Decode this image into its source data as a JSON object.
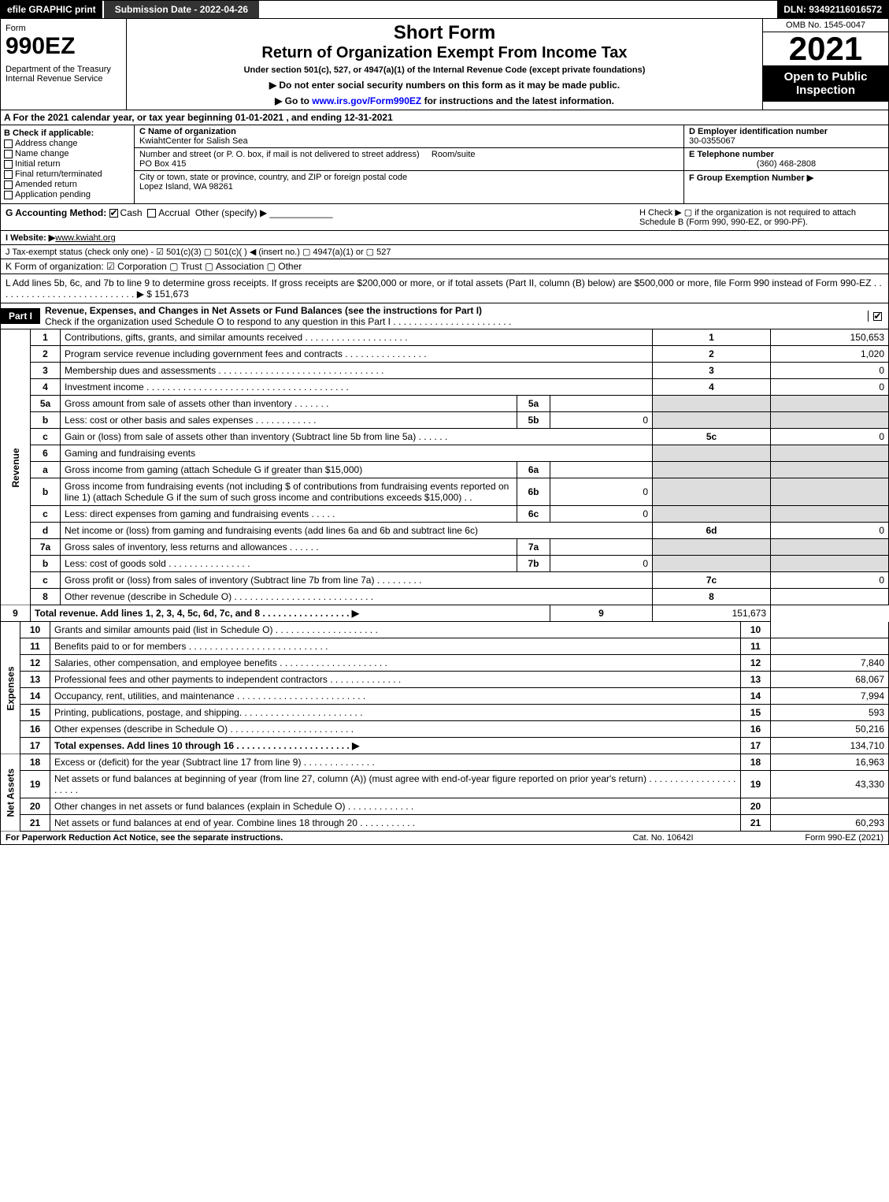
{
  "topbar": {
    "efile": "efile GRAPHIC print",
    "subdate": "Submission Date - 2022-04-26",
    "dln": "DLN: 93492116016572"
  },
  "hdr": {
    "form": "Form",
    "num": "990EZ",
    "dept": "Department of the Treasury\nInternal Revenue Service",
    "short": "Short Form",
    "title": "Return of Organization Exempt From Income Tax",
    "under": "Under section 501(c), 527, or 4947(a)(1) of the Internal Revenue Code (except private foundations)",
    "note1": "▶ Do not enter social security numbers on this form as it may be made public.",
    "note2": "▶ Go to ",
    "note2link": "www.irs.gov/Form990EZ",
    "note2b": " for instructions and the latest information.",
    "omb": "OMB No. 1545-0047",
    "year": "2021",
    "open": "Open to Public Inspection"
  },
  "A": "A  For the 2021 calendar year, or tax year beginning 01-01-2021 , and ending 12-31-2021",
  "B": {
    "title": "B  Check if applicable:",
    "addr": "Address change",
    "name": "Name change",
    "init": "Initial return",
    "final": "Final return/terminated",
    "amend": "Amended return",
    "app": "Application pending"
  },
  "C": {
    "nameLbl": "C Name of organization",
    "name": "KwiahtCenter for Salish Sea",
    "streetLbl": "Number and street (or P. O. box, if mail is not delivered to street address)",
    "room": "Room/suite",
    "street": "PO Box 415",
    "cityLbl": "City or town, state or province, country, and ZIP or foreign postal code",
    "city": "Lopez Island, WA   98261"
  },
  "D": {
    "einLbl": "D Employer identification number",
    "ein": "30-0355067",
    "telLbl": "E Telephone number",
    "tel": "(360) 468-2808",
    "grpLbl": "F Group Exemption Number   ▶"
  },
  "G": {
    "lbl": "G Accounting Method:",
    "cash": "Cash",
    "accr": "Accrual",
    "other": "Other (specify) ▶"
  },
  "H": "H   Check ▶  ▢  if the organization is not required to attach Schedule B (Form 990, 990-EZ, or 990-PF).",
  "I": {
    "lbl": "I Website: ▶",
    "val": "www.kwiaht.org"
  },
  "J": "J Tax-exempt status (check only one) - ☑ 501(c)(3) ▢ 501(c)(  ) ◀ (insert no.) ▢ 4947(a)(1) or ▢ 527",
  "K": "K Form of organization:   ☑ Corporation   ▢ Trust   ▢ Association   ▢ Other",
  "L": "L Add lines 5b, 6c, and 7b to line 9 to determine gross receipts. If gross receipts are $200,000 or more, or if total assets (Part II, column (B) below) are $500,000 or more, file Form 990 instead of Form 990-EZ  . . . . . . . . . . . . . . . . . . . . . . . . . . .  ▶ $ 151,673",
  "part1": {
    "tag": "Part I",
    "title": "Revenue, Expenses, and Changes in Net Assets or Fund Balances (see the instructions for Part I)",
    "sub": "Check if the organization used Schedule O to respond to any question in this Part I . . . . . . . . . . . . . . . . . . . . . . ."
  },
  "sideR": "Revenue",
  "sideE": "Expenses",
  "sideN": "Net Assets",
  "lines": [
    {
      "n": "1",
      "t": "Contributions, gifts, grants, and similar amounts received  . . . . . . . . . . . . . . . . . . . .",
      "r": "1",
      "v": "150,653"
    },
    {
      "n": "2",
      "t": "Program service revenue including government fees and contracts  . . . . . . . . . . . . . . . .",
      "r": "2",
      "v": "1,020"
    },
    {
      "n": "3",
      "t": "Membership dues and assessments  . . . . . . . . . . . . . . . . . . . . . . . . . . . . . . . .",
      "r": "3",
      "v": "0"
    },
    {
      "n": "4",
      "t": "Investment income  . . . . . . . . . . . . . . . . . . . . . . . . . . . . . . . . . . . . . . .",
      "r": "4",
      "v": "0"
    }
  ],
  "l5a": {
    "n": "5a",
    "t": "Gross amount from sale of assets other than inventory  . . . . . . .",
    "m": "5a",
    "mv": ""
  },
  "l5b": {
    "n": "b",
    "t": "Less: cost or other basis and sales expenses  . . . . . . . . . . . .",
    "m": "5b",
    "mv": "0"
  },
  "l5c": {
    "n": "c",
    "t": "Gain or (loss) from sale of assets other than inventory (Subtract line 5b from line 5a)  . . . . . .",
    "r": "5c",
    "v": "0"
  },
  "l6": {
    "n": "6",
    "t": "Gaming and fundraising events"
  },
  "l6a": {
    "n": "a",
    "t": "Gross income from gaming (attach Schedule G if greater than $15,000)",
    "m": "6a",
    "mv": ""
  },
  "l6b": {
    "n": "b",
    "t": "Gross income from fundraising events (not including $                    of contributions from fundraising events reported on line 1) (attach Schedule G if the sum of such gross income and contributions exceeds $15,000)   . .",
    "m": "6b",
    "mv": "0"
  },
  "l6c": {
    "n": "c",
    "t": "Less: direct expenses from gaming and fundraising events   . . . . .",
    "m": "6c",
    "mv": "0"
  },
  "l6d": {
    "n": "d",
    "t": "Net income or (loss) from gaming and fundraising events (add lines 6a and 6b and subtract line 6c)",
    "r": "6d",
    "v": "0"
  },
  "l7a": {
    "n": "7a",
    "t": "Gross sales of inventory, less returns and allowances  . . . . . .",
    "m": "7a",
    "mv": ""
  },
  "l7b": {
    "n": "b",
    "t": "Less: cost of goods sold       . . . . . . . . . . . . . . . .",
    "m": "7b",
    "mv": "0"
  },
  "l7c": {
    "n": "c",
    "t": "Gross profit or (loss) from sales of inventory (Subtract line 7b from line 7a)  . . . . . . . . .",
    "r": "7c",
    "v": "0"
  },
  "l8": {
    "n": "8",
    "t": "Other revenue (describe in Schedule O)  . . . . . . . . . . . . . . . . . . . . . . . . . . .",
    "r": "8",
    "v": ""
  },
  "l9": {
    "n": "9",
    "t": "Total revenue. Add lines 1, 2, 3, 4, 5c, 6d, 7c, and 8   . . . . . . . . . . . . . . . . .   ▶",
    "r": "9",
    "v": "151,673",
    "bold": true
  },
  "exp": [
    {
      "n": "10",
      "t": "Grants and similar amounts paid (list in Schedule O)  . . . . . . . . . . . . . . . . . . . .",
      "r": "10",
      "v": ""
    },
    {
      "n": "11",
      "t": "Benefits paid to or for members         . . . . . . . . . . . . . . . . . . . . . . . . . . .",
      "r": "11",
      "v": ""
    },
    {
      "n": "12",
      "t": "Salaries, other compensation, and employee benefits . . . . . . . . . . . . . . . . . . . . .",
      "r": "12",
      "v": "7,840"
    },
    {
      "n": "13",
      "t": "Professional fees and other payments to independent contractors  . . . . . . . . . . . . . .",
      "r": "13",
      "v": "68,067"
    },
    {
      "n": "14",
      "t": "Occupancy, rent, utilities, and maintenance . . . . . . . . . . . . . . . . . . . . . . . . .",
      "r": "14",
      "v": "7,994"
    },
    {
      "n": "15",
      "t": "Printing, publications, postage, and shipping.  . . . . . . . . . . . . . . . . . . . . . . .",
      "r": "15",
      "v": "593"
    },
    {
      "n": "16",
      "t": "Other expenses (describe in Schedule O)      . . . . . . . . . . . . . . . . . . . . . . . .",
      "r": "16",
      "v": "50,216"
    },
    {
      "n": "17",
      "t": "Total expenses. Add lines 10 through 16      . . . . . . . . . . . . . . . . . . . . . .   ▶",
      "r": "17",
      "v": "134,710",
      "bold": true
    }
  ],
  "net": [
    {
      "n": "18",
      "t": "Excess or (deficit) for the year (Subtract line 17 from line 9)         . . . . . . . . . . . . . .",
      "r": "18",
      "v": "16,963"
    },
    {
      "n": "19",
      "t": "Net assets or fund balances at beginning of year (from line 27, column (A)) (must agree with end-of-year figure reported on prior year's return) . . . . . . . . . . . . . . . . . . . . . .",
      "r": "19",
      "v": "43,330"
    },
    {
      "n": "20",
      "t": "Other changes in net assets or fund balances (explain in Schedule O) . . . . . . . . . . . . .",
      "r": "20",
      "v": ""
    },
    {
      "n": "21",
      "t": "Net assets or fund balances at end of year. Combine lines 18 through 20 . . . . . . . . . . .",
      "r": "21",
      "v": "60,293"
    }
  ],
  "foot": {
    "f1": "For Paperwork Reduction Act Notice, see the separate instructions.",
    "f2": "Cat. No. 10642I",
    "f3": "Form 990-EZ (2021)"
  }
}
